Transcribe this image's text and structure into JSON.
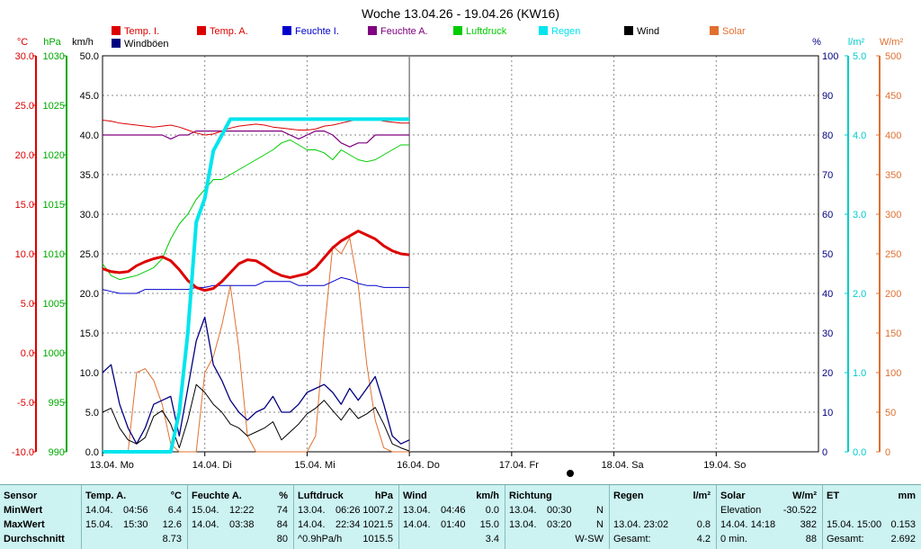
{
  "chart_data": {
    "type": "line",
    "title": "Woche 13.04.26 - 19.04.26 (KW16)",
    "x_range": [
      "13.04.26 00:00",
      "20.04.26 00:00"
    ],
    "x_ticks": [
      "13.04. Mo",
      "14.04. Di",
      "15.04. Mi",
      "16.04. Do",
      "17.04. Fr",
      "18.04. Sa",
      "19.04. So"
    ],
    "axes": {
      "temp": {
        "unit": "°C",
        "min": -10,
        "max": 30,
        "ticks": [
          "30.0",
          "25.0",
          "20.0",
          "15.0",
          "10.0",
          "5.0",
          "0.0",
          "-5.0",
          "-10.0"
        ],
        "color": "#dd0000"
      },
      "pressure": {
        "unit": "hPa",
        "min": 990,
        "max": 1030,
        "ticks": [
          "1030",
          "1025",
          "1020",
          "1015",
          "1010",
          "1005",
          "1000",
          "995",
          "990"
        ],
        "color": "#00aa00"
      },
      "wind": {
        "unit": "km/h",
        "min": 0,
        "max": 50,
        "ticks": [
          "50.0",
          "45.0",
          "40.0",
          "35.0",
          "30.0",
          "25.0",
          "20.0",
          "15.0",
          "10.0",
          "5.0",
          "0.0"
        ],
        "color": "#000000"
      },
      "humidity": {
        "unit": "%",
        "min": 0,
        "max": 100,
        "ticks": [
          "100",
          "90",
          "80",
          "70",
          "60",
          "50",
          "40",
          "30",
          "20",
          "10",
          "0"
        ],
        "color": "#000080"
      },
      "rain": {
        "unit": "l/m²",
        "min": 0,
        "max": 5,
        "ticks": [
          "5.0",
          "4.0",
          "3.0",
          "2.0",
          "1.0",
          "0.0"
        ],
        "color": "#00cccc"
      },
      "solar": {
        "unit": "W/m²",
        "min": 0,
        "max": 500,
        "ticks": [
          "500",
          "450",
          "400",
          "350",
          "300",
          "250",
          "200",
          "150",
          "100",
          "50",
          "0"
        ],
        "color": "#e07030"
      }
    },
    "legend": [
      {
        "name": "Temp. I.",
        "color": "#dd0000"
      },
      {
        "name": "Temp. A.",
        "color": "#dd0000"
      },
      {
        "name": "Feuchte I.",
        "color": "#0000cc"
      },
      {
        "name": "Feuchte A.",
        "color": "#800080"
      },
      {
        "name": "Luftdruck",
        "color": "#00cc00"
      },
      {
        "name": "Regen",
        "color": "#00e5ee"
      },
      {
        "name": "Wind",
        "color": "#000000"
      },
      {
        "name": "Solar",
        "color": "#e07030"
      },
      {
        "name": "Windböen",
        "color": "#000080"
      }
    ],
    "x_hours": [
      0,
      2,
      4,
      6,
      8,
      10,
      12,
      14,
      16,
      18,
      20,
      22,
      24,
      26,
      28,
      30,
      32,
      34,
      36,
      38,
      40,
      42,
      44,
      46,
      48,
      50,
      52,
      54,
      56,
      58,
      60,
      62,
      64,
      66,
      68,
      70,
      72
    ],
    "series": [
      {
        "name": "Temp. I.",
        "axis": "temp",
        "values": [
          23.5,
          23.4,
          23.2,
          23.1,
          23.0,
          22.9,
          22.8,
          22.9,
          23.0,
          22.8,
          22.5,
          22.2,
          22.0,
          22.1,
          22.4,
          22.7,
          22.9,
          23.0,
          23.1,
          23.0,
          22.8,
          22.7,
          22.6,
          22.5,
          22.5,
          22.6,
          22.9,
          23.0,
          23.2,
          23.4,
          23.6,
          23.7,
          23.6,
          23.4,
          23.3,
          23.2,
          23.2
        ]
      },
      {
        "name": "Temp. A.",
        "axis": "temp",
        "values": [
          8.5,
          8.2,
          8.1,
          8.2,
          8.8,
          9.2,
          9.5,
          9.7,
          9.3,
          8.4,
          7.3,
          6.6,
          6.3,
          6.5,
          7.2,
          8.1,
          9.0,
          9.4,
          9.3,
          8.8,
          8.2,
          7.8,
          7.6,
          7.8,
          8.0,
          8.6,
          9.6,
          10.6,
          11.3,
          11.8,
          12.3,
          11.9,
          11.5,
          10.8,
          10.3,
          10.0,
          9.9
        ]
      },
      {
        "name": "Feuchte I.",
        "axis": "humidity",
        "values": [
          41,
          40.5,
          40,
          40,
          40,
          41,
          41,
          41,
          41,
          41,
          41,
          41.5,
          41.5,
          42,
          42,
          42,
          42,
          42,
          42,
          43,
          43,
          43,
          43,
          42,
          42,
          42,
          42,
          43,
          44,
          43.5,
          42.5,
          42,
          42,
          41.5,
          41.5,
          41.5,
          41.5
        ]
      },
      {
        "name": "Feuchte A.",
        "axis": "humidity",
        "values": [
          80,
          80,
          80,
          80,
          80,
          80,
          80,
          80,
          79,
          80,
          80,
          81,
          81,
          81,
          81,
          81,
          81,
          81,
          81,
          81,
          81,
          81,
          80,
          79,
          80,
          81,
          81,
          80,
          78,
          77,
          78,
          78,
          80,
          80,
          80,
          80,
          80
        ]
      },
      {
        "name": "Luftdruck",
        "axis": "pressure",
        "values": [
          1009.0,
          1007.8,
          1007.4,
          1007.6,
          1007.8,
          1008.2,
          1008.6,
          1009.5,
          1011.5,
          1013.0,
          1014.0,
          1015.5,
          1016.5,
          1017.5,
          1017.5,
          1018.0,
          1018.5,
          1019.0,
          1019.5,
          1020.0,
          1020.5,
          1021.2,
          1021.5,
          1021.0,
          1020.5,
          1020.5,
          1020.2,
          1019.5,
          1020.5,
          1020.0,
          1019.5,
          1019.3,
          1019.5,
          1020.0,
          1020.5,
          1021.0,
          1021.0
        ]
      },
      {
        "name": "Regen",
        "axis": "rain",
        "values": [
          0,
          0,
          0,
          0,
          0,
          0,
          0,
          0,
          0,
          0.5,
          1.5,
          2.9,
          3.2,
          3.8,
          4.0,
          4.2,
          4.2,
          4.2,
          4.2,
          4.2,
          4.2,
          4.2,
          4.2,
          4.2,
          4.2,
          4.2,
          4.2,
          4.2,
          4.2,
          4.2,
          4.2,
          4.2,
          4.2,
          4.2,
          4.2,
          4.2,
          4.2
        ]
      },
      {
        "name": "Wind",
        "axis": "wind",
        "values": [
          5,
          5.5,
          3,
          1.5,
          1,
          1.8,
          4.5,
          5.2,
          3.5,
          0.5,
          4,
          8.5,
          7.5,
          6,
          5,
          3.5,
          3,
          2,
          2.5,
          3,
          3.8,
          1.5,
          2.5,
          3.5,
          4.8,
          5.5,
          6.5,
          5.2,
          4,
          5.5,
          4.2,
          4.8,
          5.6,
          3.5,
          1,
          0.5,
          0.1
        ]
      },
      {
        "name": "Windböen",
        "axis": "wind",
        "values": [
          10,
          11,
          6,
          3,
          1,
          3,
          6,
          6.5,
          7,
          2,
          8,
          14,
          17,
          11,
          9,
          6.5,
          5,
          4,
          5,
          5.5,
          7,
          5,
          5,
          6,
          7.5,
          8,
          8.5,
          7.5,
          6,
          8,
          6.5,
          8,
          9.5,
          6,
          2,
          1,
          1.5
        ]
      },
      {
        "name": "Solar",
        "axis": "solar",
        "values": [
          0,
          0,
          0,
          0,
          100,
          105,
          90,
          60,
          10,
          0,
          0,
          0,
          100,
          120,
          160,
          210,
          130,
          20,
          0,
          0,
          0,
          0,
          0,
          0,
          0,
          20,
          150,
          260,
          250,
          270,
          210,
          110,
          40,
          5,
          0,
          0,
          0
        ]
      }
    ]
  },
  "table": {
    "row_labels": {
      "header": "Sensor",
      "min": "MinWert",
      "max": "MaxWert",
      "avg": "Durchschnitt"
    },
    "temp": {
      "title": "Temp. A.",
      "unit": "°C",
      "min_date": "14.04.",
      "min_time": "04:56",
      "min_val": "6.4",
      "max_date": "15.04.",
      "max_time": "15:30",
      "max_val": "12.6",
      "avg": "8.73"
    },
    "humidity": {
      "title": "Feuchte A.",
      "unit": "%",
      "min_date": "15.04.",
      "min_time": "12:22",
      "min_val": "74",
      "max_date": "14.04.",
      "max_time": "03:38",
      "max_val": "84",
      "avg": "80"
    },
    "pressure": {
      "title": "Luftdruck",
      "unit": "hPa",
      "min_date": "13.04.",
      "min_time": "06:26",
      "min_val": "1007.2",
      "max_date": "14.04.",
      "max_time": "22:34",
      "max_val": "1021.5",
      "avg_label": "^0.9hPa/h",
      "avg": "1015.5"
    },
    "wind": {
      "title": "Wind",
      "unit": "km/h",
      "min_date": "13.04.",
      "min_time": "04:46",
      "min_val": "0.0",
      "max_date": "14.04.",
      "max_time": "01:40",
      "max_val": "15.0",
      "avg": "3.4"
    },
    "direction": {
      "title": "Richtung",
      "min_date": "13.04.",
      "min_time": "00:30",
      "min_val": "N",
      "max_date": "13.04.",
      "max_time": "03:20",
      "max_val": "N",
      "avg": "W-SW"
    },
    "rain": {
      "title": "Regen",
      "unit": "l/m²",
      "max_label": "13.04.  23:02",
      "max_val": "0.8",
      "avg_label": "Gesamt:",
      "avg": "4.2"
    },
    "solar": {
      "title": "Solar",
      "unit": "W/m²",
      "min_label": "Elevation",
      "min_val": "-30.522",
      "max_label": "14.04.  14:18",
      "max_val": "382",
      "avg_label": "0 min.",
      "avg": "88"
    },
    "et": {
      "title": "ET",
      "unit": "mm",
      "max_label": "15.04.  15:00",
      "max_val": "0.153",
      "avg_label": "Gesamt:",
      "avg": "2.692"
    }
  }
}
